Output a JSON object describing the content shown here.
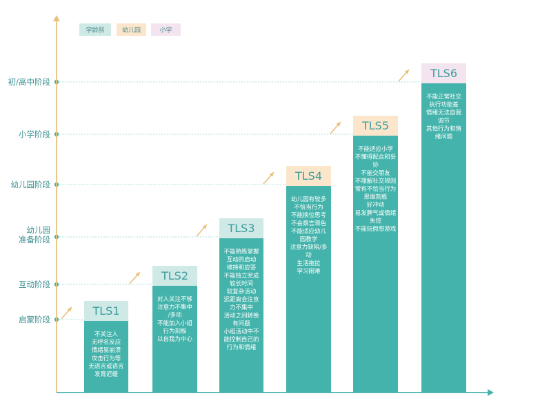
{
  "colors": {
    "axis": "#48b2ac",
    "bar": "#44b3ab",
    "gold_arrow": "#e7c27b",
    "guide": "#a8dcd8"
  },
  "legend": [
    {
      "label": "学龄前",
      "color": "#cfe9e6"
    },
    {
      "label": "幼儿园",
      "color": "#fbe6cc"
    },
    {
      "label": "小学",
      "color": "#f3e4ef"
    }
  ],
  "chart_data": {
    "type": "bar",
    "title": "",
    "xlabel": "",
    "ylabel": "",
    "y_levels": [
      "启蒙阶段",
      "互动阶段",
      "幼儿园准备阶段",
      "幼儿园阶段",
      "小学阶段",
      "初/高中阶段"
    ],
    "categories": [
      "TLS1",
      "TLS2",
      "TLS3",
      "TLS4",
      "TLS5",
      "TLS6"
    ],
    "values": [
      1,
      2,
      3,
      4,
      5,
      6
    ],
    "bar_header_group": [
      "学龄前",
      "学龄前",
      "学龄前",
      "幼儿园",
      "幼儿园",
      "小学"
    ],
    "bar_text": [
      [
        "不关注人",
        "无呼名反应",
        "情绪易崩溃",
        "攻击行为等",
        "无语言或语言",
        "发育迟缓"
      ],
      [
        "对人关注不够",
        "注意力不集中",
        "/多动",
        "不能加入小组",
        "行为刻板",
        "以自我为中心"
      ],
      [
        "不能熟练掌握",
        "互动的启动",
        "维持和应答",
        "不能独立完成",
        "较长时间",
        "较复杂活动",
        "远距离会注意",
        "力不集中",
        "活动之间转换",
        "有问题",
        "小组活动中不",
        "能控制自己的",
        "行为和情绪"
      ],
      [
        "幼儿园有较多",
        "不恰当行为",
        "不能换位思考",
        "不会察言观色",
        "不能适应幼儿",
        "园教学",
        "注意力缺陷/多",
        "动",
        "生活拖拉",
        "学习困难"
      ],
      [
        "不能适应小学",
        "不懂得配合和妥",
        "协",
        "不能交朋友",
        "不理解社交规则",
        "常有不恰当行为",
        "思维刻板",
        "好冲动",
        "易发脾气或情绪",
        "失控",
        "不能玩假想游戏"
      ],
      [
        "不能正常社交",
        "执行功能差",
        "情绪无法自我",
        "调节",
        "其他行为和情",
        "绪问题"
      ]
    ]
  }
}
